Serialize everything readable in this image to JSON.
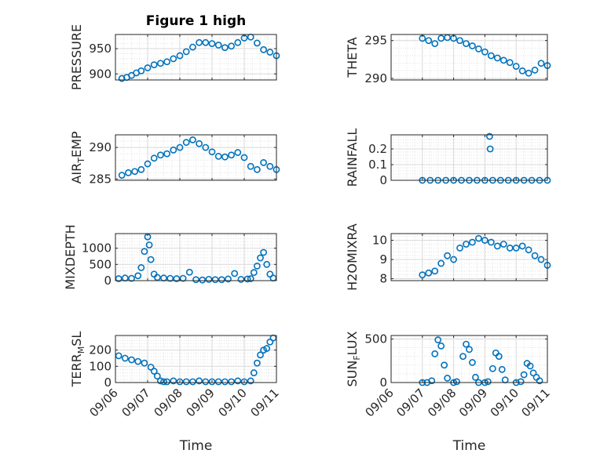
{
  "chart_data": [
    {
      "type": "scatter",
      "title": "Figure 1 high",
      "ylabel": "PRESSURE",
      "ylabel_sub": "",
      "ylim": [
        888,
        978
      ],
      "yticks": [
        900,
        950
      ],
      "ytick_labels": [
        "900",
        "950"
      ],
      "color": "#0072BD",
      "grid": true,
      "x_days": [
        0.2,
        0.35,
        0.5,
        0.65,
        0.8,
        1.0,
        1.2,
        1.4,
        1.6,
        1.8,
        2.0,
        2.2,
        2.4,
        2.6,
        2.8,
        3.0,
        3.2,
        3.4,
        3.6,
        3.8,
        4.0,
        4.2,
        4.4,
        4.6,
        4.8,
        5.0
      ],
      "values": [
        891,
        893,
        897,
        902,
        906,
        912,
        918,
        921,
        924,
        930,
        936,
        944,
        953,
        962,
        962,
        960,
        957,
        952,
        955,
        962,
        971,
        973,
        961,
        948,
        943,
        936
      ]
    },
    {
      "type": "scatter",
      "title": "",
      "ylabel": "THETA",
      "ylabel_sub": "",
      "ylim": [
        289.8,
        295.8
      ],
      "yticks": [
        290,
        295
      ],
      "ytick_labels": [
        "290",
        "295"
      ],
      "color": "#0072BD",
      "grid": true,
      "x_days": [
        1.0,
        1.2,
        1.4,
        1.6,
        1.8,
        2.0,
        2.2,
        2.4,
        2.6,
        2.8,
        3.0,
        3.2,
        3.4,
        3.6,
        3.8,
        4.0,
        4.2,
        4.4,
        4.6,
        4.8,
        5.0
      ],
      "values": [
        295.3,
        295.0,
        294.6,
        295.3,
        295.4,
        295.3,
        295.0,
        294.6,
        294.3,
        293.9,
        293.5,
        293.0,
        292.7,
        292.4,
        292.1,
        291.6,
        291.0,
        290.7,
        291.1,
        292.0,
        291.7
      ]
    },
    {
      "type": "scatter",
      "title": "",
      "ylabel": "AIR",
      "ylabel_sub": "T",
      "ylabel_post": "EMP",
      "ylim": [
        284.8,
        292.0
      ],
      "yticks": [
        285,
        290
      ],
      "ytick_labels": [
        "285",
        "290"
      ],
      "color": "#0072BD",
      "grid": true,
      "x_days": [
        0.2,
        0.4,
        0.6,
        0.8,
        1.0,
        1.2,
        1.4,
        1.6,
        1.8,
        2.0,
        2.2,
        2.4,
        2.6,
        2.8,
        3.0,
        3.2,
        3.4,
        3.6,
        3.8,
        4.0,
        4.2,
        4.4,
        4.6,
        4.8,
        5.0
      ],
      "values": [
        285.6,
        286.0,
        286.2,
        286.5,
        287.4,
        288.3,
        288.8,
        289.0,
        289.6,
        290.0,
        290.8,
        291.2,
        290.6,
        290.0,
        289.3,
        288.6,
        288.5,
        288.8,
        289.2,
        288.4,
        287.0,
        286.5,
        287.6,
        287.0,
        286.5
      ]
    },
    {
      "type": "scatter",
      "title": "",
      "ylabel": "RAINFALL",
      "ylabel_sub": "",
      "ylim": [
        0,
        0.29
      ],
      "yticks": [
        0,
        0.1,
        0.2
      ],
      "ytick_labels": [
        "0",
        "0.1",
        "0.2"
      ],
      "color": "#0072BD",
      "grid": true,
      "x_days": [
        1.0,
        1.25,
        1.5,
        1.75,
        2.0,
        2.25,
        2.5,
        2.75,
        3.0,
        3.25,
        3.5,
        3.75,
        4.0,
        4.25,
        4.5,
        4.75,
        5.0,
        3.15,
        3.17
      ],
      "values": [
        0,
        0,
        0,
        0,
        0,
        0,
        0,
        0,
        0,
        0,
        0,
        0,
        0,
        0,
        0,
        0,
        0,
        0.28,
        0.2
      ]
    },
    {
      "type": "scatter",
      "title": "",
      "ylabel": "MIXDEPTH",
      "ylabel_sub": "",
      "ylim": [
        0,
        1450
      ],
      "yticks": [
        0,
        500,
        1000
      ],
      "ytick_labels": [
        "0",
        "500",
        "1000"
      ],
      "color": "#0072BD",
      "grid": true,
      "x_days": [
        0.1,
        0.3,
        0.5,
        0.7,
        0.8,
        0.9,
        1.0,
        1.05,
        1.1,
        1.2,
        1.3,
        1.5,
        1.7,
        1.9,
        2.1,
        2.3,
        2.5,
        2.7,
        2.9,
        3.1,
        3.3,
        3.5,
        3.7,
        3.9,
        4.1,
        4.2,
        4.3,
        4.4,
        4.5,
        4.6,
        4.7,
        4.8,
        4.9
      ],
      "values": [
        60,
        80,
        70,
        150,
        400,
        900,
        1350,
        1100,
        650,
        200,
        100,
        80,
        70,
        60,
        70,
        260,
        30,
        20,
        40,
        30,
        30,
        50,
        220,
        40,
        50,
        60,
        250,
        450,
        700,
        870,
        500,
        200,
        80
      ]
    },
    {
      "type": "scatter",
      "title": "",
      "ylabel": "H2OMIXRA",
      "ylabel_sub": "",
      "ylim": [
        7.9,
        10.35
      ],
      "yticks": [
        8,
        9,
        10
      ],
      "ytick_labels": [
        "8",
        "9",
        "10"
      ],
      "color": "#0072BD",
      "grid": true,
      "x_days": [
        1.0,
        1.2,
        1.4,
        1.6,
        1.8,
        2.0,
        2.2,
        2.4,
        2.6,
        2.8,
        3.0,
        3.2,
        3.4,
        3.6,
        3.8,
        4.0,
        4.2,
        4.4,
        4.6,
        4.8,
        5.0
      ],
      "values": [
        8.2,
        8.3,
        8.4,
        8.8,
        9.2,
        9.0,
        9.6,
        9.8,
        9.9,
        10.1,
        10.0,
        9.9,
        9.7,
        9.8,
        9.6,
        9.6,
        9.7,
        9.5,
        9.2,
        9.0,
        8.7
      ]
    },
    {
      "type": "scatter",
      "title": "",
      "ylabel": "TERR",
      "ylabel_sub": "M",
      "ylabel_post": "SL",
      "ylim": [
        0,
        290
      ],
      "yticks": [
        0,
        100,
        200
      ],
      "ytick_labels": [
        "0",
        "100",
        "200"
      ],
      "color": "#0072BD",
      "grid": true,
      "x_days": [
        0.1,
        0.3,
        0.5,
        0.7,
        0.9,
        1.1,
        1.2,
        1.3,
        1.4,
        1.5,
        1.6,
        1.8,
        2.0,
        2.2,
        2.4,
        2.6,
        2.8,
        3.0,
        3.2,
        3.4,
        3.6,
        3.8,
        4.0,
        4.2,
        4.3,
        4.4,
        4.5,
        4.6,
        4.7,
        4.8,
        4.9
      ],
      "values": [
        165,
        150,
        140,
        130,
        120,
        95,
        70,
        40,
        10,
        5,
        5,
        10,
        5,
        5,
        5,
        10,
        5,
        5,
        5,
        5,
        5,
        10,
        5,
        10,
        60,
        120,
        170,
        200,
        210,
        250,
        275
      ]
    },
    {
      "type": "scatter",
      "title": "",
      "ylabel": "SUN",
      "ylabel_sub": "F",
      "ylabel_post": "LUX",
      "ylim": [
        0,
        540
      ],
      "yticks": [
        0,
        500
      ],
      "ytick_labels": [
        "0",
        "500"
      ],
      "color": "#0072BD",
      "grid": true,
      "x_days": [
        1.0,
        1.15,
        1.3,
        1.4,
        1.5,
        1.6,
        1.7,
        1.8,
        2.0,
        2.1,
        2.3,
        2.4,
        2.5,
        2.6,
        2.7,
        2.8,
        3.0,
        3.1,
        3.25,
        3.35,
        3.45,
        3.55,
        3.65,
        4.0,
        4.15,
        4.25,
        4.35,
        4.45,
        4.55,
        4.65,
        4.75
      ],
      "values": [
        0,
        0,
        20,
        330,
        490,
        420,
        200,
        50,
        0,
        10,
        300,
        440,
        380,
        230,
        60,
        0,
        0,
        10,
        160,
        340,
        300,
        150,
        30,
        0,
        10,
        90,
        220,
        190,
        110,
        60,
        20
      ]
    }
  ],
  "shared_x": {
    "xlabel": "Time",
    "xlim_days": [
      0,
      5
    ],
    "ticks_days": [
      0,
      1,
      2,
      3,
      4,
      5
    ],
    "tick_labels": [
      "09/06",
      "09/07",
      "09/08",
      "09/09",
      "09/10",
      "09/11"
    ]
  }
}
